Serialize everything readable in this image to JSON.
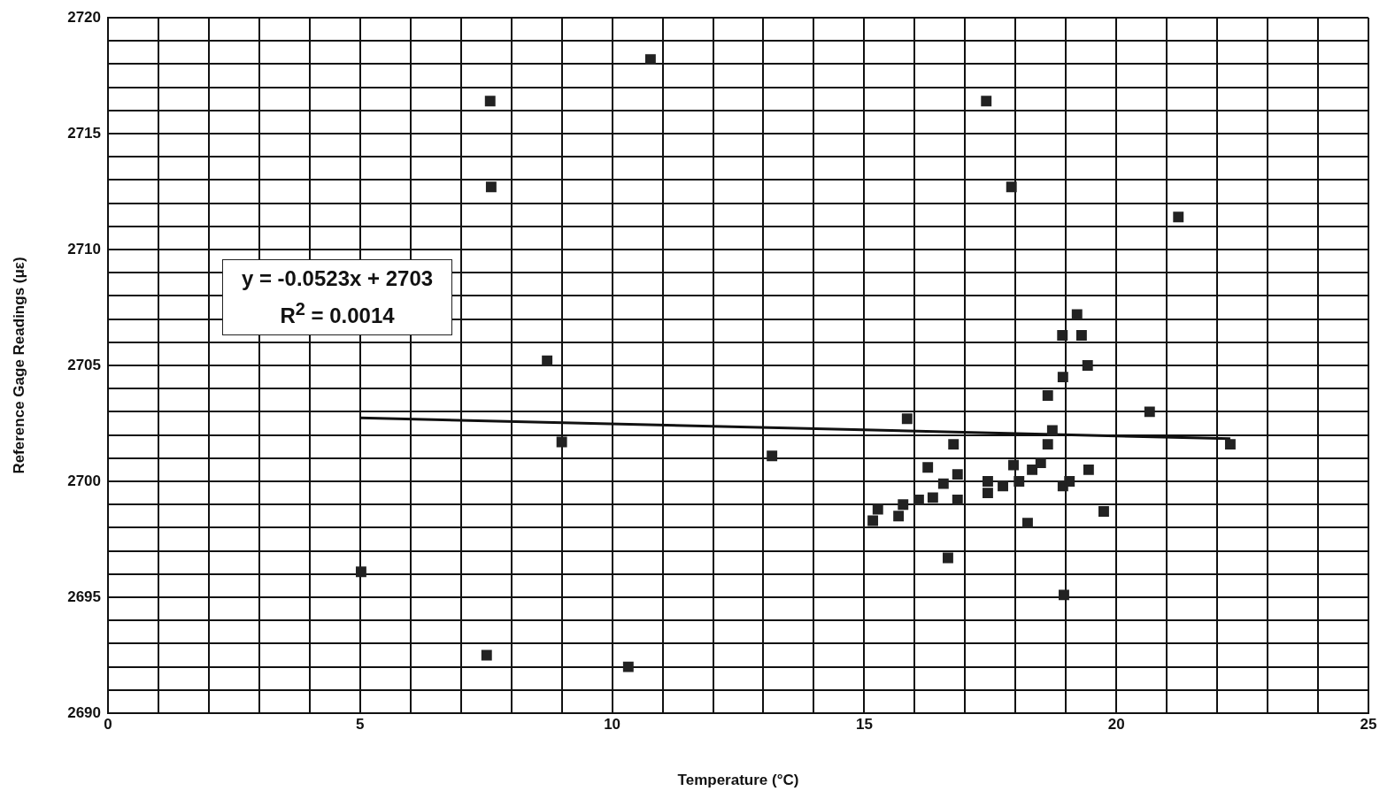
{
  "chart_data": {
    "type": "scatter",
    "xlabel": "Temperature (°C)",
    "ylabel": "Reference Gage Readings (με)",
    "annotations": [
      "y = -0.0523x + 2703",
      "R$^{2}$ = 0.0014"
    ],
    "xlim": [
      0,
      25
    ],
    "ylim": [
      2690,
      2720
    ],
    "xticks": [
      0,
      {
        "value": 1,
        "label": null
      },
      {
        "value": 2,
        "label": null
      },
      {
        "value": 3,
        "label": null
      },
      {
        "value": 4,
        "label": null
      },
      5,
      {
        "value": 6,
        "label": null
      },
      {
        "value": 7,
        "label": null
      },
      {
        "value": 8,
        "label": null
      },
      {
        "value": 9,
        "label": null
      },
      10,
      {
        "value": 11,
        "label": null
      },
      {
        "value": 12,
        "label": null
      },
      {
        "value": 13,
        "label": null
      },
      {
        "value": 14,
        "label": null
      },
      15,
      {
        "value": 16,
        "label": null
      },
      {
        "value": 17,
        "label": null
      },
      {
        "value": 18,
        "label": null
      },
      {
        "value": 19,
        "label": null
      },
      20,
      {
        "value": 21,
        "label": null
      },
      {
        "value": 22,
        "label": null
      },
      {
        "value": 23,
        "label": null
      },
      {
        "value": 24,
        "label": null
      },
      25
    ],
    "yticks": [
      2690,
      {
        "value": 2691,
        "label": null
      },
      {
        "value": 2692,
        "label": null
      },
      {
        "value": 2693,
        "label": null
      },
      {
        "value": 2694,
        "label": null
      },
      2695,
      {
        "value": 2696,
        "label": null
      },
      {
        "value": 2697,
        "label": null
      },
      {
        "value": 2698,
        "label": null
      },
      {
        "value": 2699,
        "label": null
      },
      2700,
      {
        "value": 2701,
        "label": null
      },
      {
        "value": 2702,
        "label": null
      },
      {
        "value": 2703,
        "label": null
      },
      {
        "value": 2704,
        "label": null
      },
      2705,
      {
        "value": 2706,
        "label": null
      },
      {
        "value": 2707,
        "label": null
      },
      {
        "value": 2708,
        "label": null
      },
      {
        "value": 2709,
        "label": null
      },
      2710,
      {
        "value": 2711,
        "label": null
      },
      {
        "value": 2712,
        "label": null
      },
      {
        "value": 2713,
        "label": null
      },
      {
        "value": 2714,
        "label": null
      },
      2715,
      {
        "value": 2716,
        "label": null
      },
      {
        "value": 2717,
        "label": null
      },
      {
        "value": 2718,
        "label": null
      },
      {
        "value": 2719,
        "label": null
      },
      2720
    ],
    "grid": true,
    "legend": false,
    "series": [
      {
        "color": "#222222",
        "marker": "square",
        "x": [
          5.02,
          7.58,
          7.6,
          7.51,
          8.71,
          9.0,
          10.76,
          10.32,
          13.17,
          15.17,
          15.27,
          15.68,
          15.77,
          15.85,
          16.08,
          16.26,
          16.36,
          16.57,
          16.66,
          16.77,
          16.85,
          16.85,
          17.42,
          17.45,
          17.45,
          17.75,
          17.92,
          17.96,
          18.07,
          18.24,
          18.33,
          18.5,
          18.64,
          18.64,
          18.73,
          18.93,
          18.94,
          18.94,
          18.96,
          19.07,
          19.22,
          19.31,
          19.43,
          19.45,
          19.75,
          20.66,
          21.23,
          22.26
        ],
        "values": [
          2696.1,
          2716.4,
          2712.7,
          2692.5,
          2705.2,
          2701.7,
          2718.2,
          2692.0,
          2701.1,
          2698.3,
          2698.8,
          2698.5,
          2699.0,
          2702.7,
          2699.2,
          2700.6,
          2699.3,
          2699.9,
          2696.7,
          2701.6,
          2700.3,
          2699.2,
          2716.4,
          2700.0,
          2699.5,
          2699.8,
          2712.7,
          2700.7,
          2700.0,
          2698.2,
          2700.5,
          2700.8,
          2703.7,
          2701.6,
          2702.2,
          2706.3,
          2704.5,
          2699.8,
          2695.1,
          2700.0,
          2707.2,
          2706.3,
          2705.0,
          2700.5,
          2698.7,
          2703.0,
          2711.4,
          2701.6
        ]
      },
      {
        "type": "line",
        "color": "#111111",
        "marker": "none",
        "line_style": "solid",
        "x": [
          5,
          22.26
        ],
        "values": [
          2702.74,
          2701.84
        ]
      }
    ]
  }
}
